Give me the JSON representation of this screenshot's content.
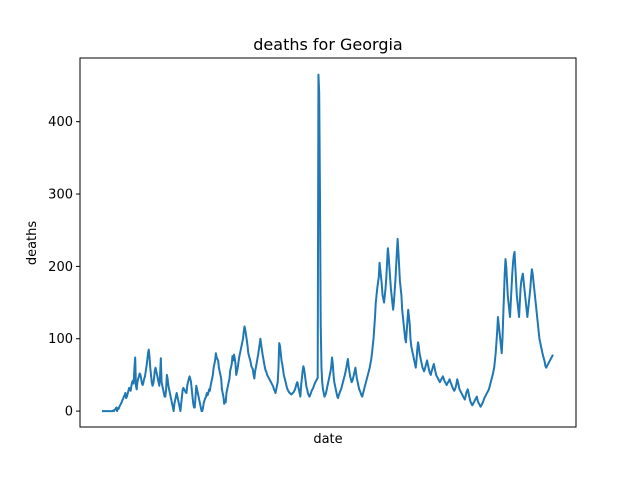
{
  "chart_data": {
    "type": "line",
    "title": "deaths for Georgia",
    "xlabel": "date",
    "ylabel": "deaths",
    "x_ticks_shown": false,
    "ylim": [
      -22,
      488
    ],
    "yticks": [
      0,
      100,
      200,
      300,
      400
    ],
    "grid": false,
    "line_color": "#1f77b4",
    "series": [
      {
        "values": [
          0,
          0,
          0,
          0,
          0,
          0,
          0,
          0,
          0,
          0,
          0,
          0,
          0,
          0,
          0,
          1,
          0,
          2,
          3,
          5,
          0,
          4,
          3,
          6,
          8,
          10,
          12,
          15,
          17,
          20,
          22,
          25,
          18,
          20,
          24,
          28,
          32,
          30,
          28,
          35,
          40,
          42,
          38,
          60,
          74,
          35,
          30,
          40,
          45,
          48,
          52,
          50,
          44,
          38,
          36,
          40,
          45,
          48,
          55,
          62,
          70,
          80,
          85,
          75,
          60,
          50,
          40,
          35,
          38,
          45,
          56,
          60,
          55,
          50,
          45,
          40,
          35,
          50,
          73,
          40,
          35,
          30,
          25,
          20,
          20,
          30,
          50,
          45,
          35,
          30,
          25,
          20,
          15,
          10,
          5,
          0,
          10,
          15,
          20,
          25,
          20,
          15,
          10,
          5,
          0,
          10,
          20,
          30,
          32,
          30,
          28,
          26,
          25,
          35,
          40,
          44,
          48,
          45,
          40,
          30,
          20,
          10,
          5,
          5,
          20,
          35,
          30,
          25,
          20,
          15,
          10,
          5,
          0,
          0,
          5,
          12,
          15,
          18,
          20,
          25,
          22,
          25,
          30,
          28,
          35,
          40,
          45,
          50,
          60,
          65,
          70,
          80,
          74,
          72,
          70,
          60,
          55,
          50,
          45,
          30,
          25,
          20,
          10,
          15,
          12,
          25,
          30,
          35,
          40,
          45,
          56,
          60,
          65,
          76,
          70,
          78,
          73,
          65,
          50,
          55,
          60,
          68,
          75,
          80,
          85,
          90,
          95,
          100,
          110,
          117,
          112,
          105,
          98,
          90,
          80,
          76,
          72,
          68,
          62,
          60,
          58,
          50,
          45,
          55,
          60,
          66,
          72,
          78,
          85,
          92,
          100,
          92,
          85,
          78,
          72,
          66,
          60,
          56,
          54,
          50,
          48,
          46,
          44,
          42,
          40,
          38,
          36,
          34,
          30,
          28,
          25,
          30,
          35,
          40,
          60,
          94,
          90,
          80,
          70,
          65,
          58,
          50,
          46,
          42,
          38,
          33,
          30,
          28,
          26,
          25,
          24,
          23,
          24,
          25,
          26,
          28,
          30,
          34,
          38,
          40,
          35,
          30,
          25,
          20,
          35,
          45,
          55,
          62,
          58,
          50,
          42,
          34,
          30,
          25,
          22,
          20,
          22,
          25,
          28,
          30,
          32,
          35,
          38,
          40,
          42,
          44,
          46,
          465,
          440,
          300,
          120,
          60,
          40,
          30,
          25,
          20,
          22,
          25,
          30,
          35,
          40,
          45,
          50,
          55,
          62,
          74,
          65,
          50,
          40,
          35,
          30,
          25,
          20,
          18,
          22,
          25,
          28,
          30,
          34,
          38,
          42,
          46,
          50,
          55,
          60,
          66,
          72,
          62,
          55,
          48,
          44,
          40,
          42,
          46,
          50,
          55,
          60,
          52,
          45,
          40,
          35,
          30,
          28,
          25,
          22,
          20,
          24,
          28,
          32,
          36,
          40,
          44,
          48,
          52,
          56,
          60,
          66,
          72,
          80,
          90,
          100,
          115,
          130,
          150,
          160,
          170,
          178,
          185,
          205,
          195,
          185,
          175,
          160,
          155,
          150,
          160,
          170,
          185,
          205,
          225,
          215,
          200,
          185,
          170,
          160,
          150,
          140,
          150,
          165,
          180,
          200,
          220,
          238,
          220,
          200,
          180,
          170,
          160,
          140,
          130,
          120,
          110,
          100,
          95,
          110,
          125,
          140,
          130,
          120,
          100,
          90,
          85,
          80,
          75,
          70,
          65,
          60,
          70,
          85,
          95,
          90,
          80,
          75,
          70,
          65,
          60,
          58,
          55,
          58,
          62,
          66,
          70,
          65,
          60,
          55,
          52,
          50,
          55,
          58,
          62,
          65,
          60,
          55,
          50,
          48,
          46,
          44,
          42,
          40,
          42,
          44,
          46,
          48,
          45,
          42,
          40,
          38,
          36,
          38,
          40,
          42,
          44,
          40,
          38,
          35,
          32,
          30,
          28,
          30,
          33,
          38,
          44,
          40,
          35,
          30,
          28,
          26,
          24,
          22,
          20,
          18,
          16,
          20,
          25,
          28,
          30,
          25,
          20,
          15,
          12,
          10,
          8,
          10,
          12,
          14,
          16,
          18,
          20,
          15,
          12,
          10,
          8,
          6,
          8,
          10,
          12,
          15,
          18,
          20,
          22,
          24,
          26,
          28,
          30,
          34,
          38,
          42,
          46,
          50,
          55,
          60,
          70,
          80,
          95,
          110,
          130,
          120,
          110,
          100,
          90,
          80,
          100,
          130,
          160,
          190,
          210,
          200,
          180,
          160,
          150,
          140,
          130,
          150,
          170,
          190,
          205,
          215,
          220,
          200,
          180,
          160,
          150,
          140,
          130,
          150,
          170,
          180,
          185,
          190,
          180,
          170,
          160,
          150,
          140,
          130,
          140,
          150,
          160,
          170,
          185,
          196,
          190,
          180,
          170,
          160,
          150,
          140,
          130,
          120,
          110,
          100,
          95,
          90,
          85,
          80,
          76,
          72,
          68,
          62,
          60,
          62,
          64,
          66,
          68,
          70,
          72,
          74,
          76,
          78
        ]
      }
    ]
  }
}
